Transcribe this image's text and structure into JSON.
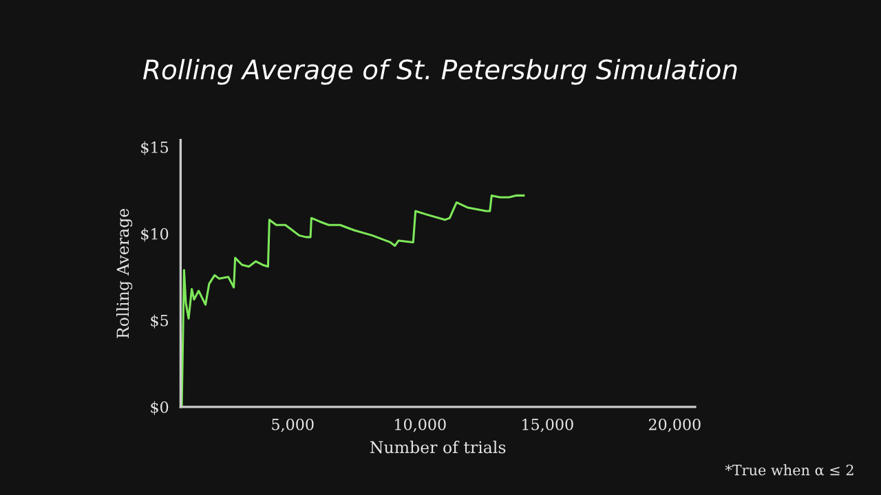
{
  "chart_data": {
    "type": "line",
    "title": "Rolling Average of St. Petersburg Simulation",
    "xlabel": "Number of trials",
    "ylabel": "Rolling Average",
    "annotations": [
      "*True when α ≤ 2"
    ],
    "series": [
      {
        "color": "#7ee85a",
        "x": [
          645,
          735,
          806,
          914,
          1039,
          1129,
          1308,
          1577,
          1720,
          1935,
          2115,
          2473,
          2688,
          2742,
          3011,
          3280,
          3548,
          3817,
          4032,
          4086,
          4355,
          4713,
          4982,
          5251,
          5520,
          5699,
          5735,
          6057,
          6415,
          6864,
          7401,
          8118,
          8835,
          9014,
          9158,
          9731,
          9821,
          10269,
          10986,
          11165,
          11253,
          11435,
          11882,
          12597,
          12742,
          12813,
          13136,
          13495,
          13763,
          14069
        ],
        "values": [
          0,
          7.9,
          6.0,
          5.1,
          6.8,
          6.2,
          6.7,
          5.9,
          7.1,
          7.6,
          7.4,
          7.5,
          6.9,
          8.6,
          8.2,
          8.1,
          8.4,
          8.2,
          8.1,
          10.8,
          10.5,
          10.5,
          10.2,
          9.9,
          9.8,
          9.8,
          10.9,
          10.7,
          10.5,
          10.5,
          10.2,
          9.9,
          9.5,
          9.3,
          9.6,
          9.5,
          11.3,
          11.1,
          10.8,
          10.9,
          11.2,
          11.8,
          11.5,
          11.3,
          11.3,
          12.2,
          12.1,
          12.1,
          12.2,
          12.2
        ]
      }
    ],
    "xlim": [
      600,
      20800
    ],
    "ylim": [
      0,
      15.4
    ],
    "xticks": [
      {
        "value": 5000,
        "label": "5,000"
      },
      {
        "value": 10000,
        "label": "10,000"
      },
      {
        "value": 15000,
        "label": "15,000"
      },
      {
        "value": 20000,
        "label": "20,000"
      }
    ],
    "yticks": [
      {
        "value": 0,
        "label": "$0"
      },
      {
        "value": 5,
        "label": "$5"
      },
      {
        "value": 10,
        "label": "$10"
      },
      {
        "value": 15,
        "label": "$15"
      }
    ],
    "grid": false,
    "marker": "none",
    "line_style": "solid"
  }
}
